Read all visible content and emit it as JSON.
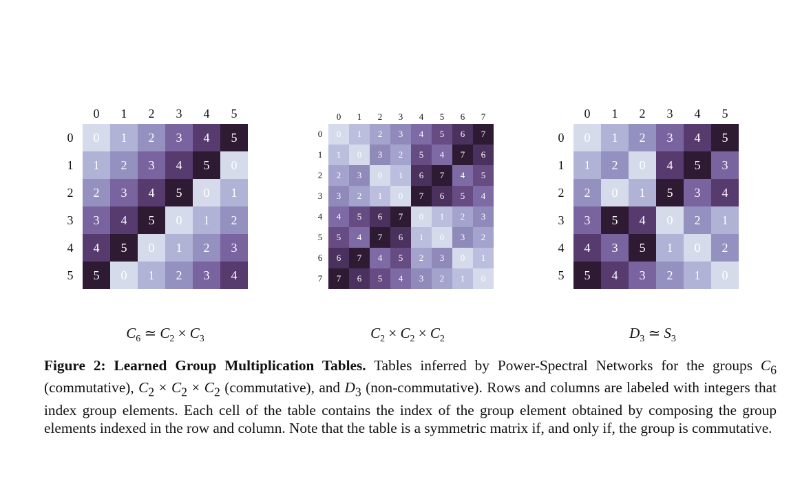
{
  "chart_data": [
    {
      "type": "heatmap",
      "row_labels": [
        "0",
        "1",
        "2",
        "3",
        "4",
        "5"
      ],
      "col_labels": [
        "0",
        "1",
        "2",
        "3",
        "4",
        "5"
      ],
      "values": [
        [
          0,
          1,
          2,
          3,
          4,
          5
        ],
        [
          1,
          2,
          3,
          4,
          5,
          0
        ],
        [
          2,
          3,
          4,
          5,
          0,
          1
        ],
        [
          3,
          4,
          5,
          0,
          1,
          2
        ],
        [
          4,
          5,
          0,
          1,
          2,
          3
        ],
        [
          5,
          0,
          1,
          2,
          3,
          4
        ]
      ],
      "subtitle": {
        "a": "C",
        "a_sub": "6",
        "op1": "≃",
        "b": "C",
        "b_sub": "2",
        "op2": "×",
        "c": "C",
        "c_sub": "3"
      }
    },
    {
      "type": "heatmap",
      "row_labels": [
        "0",
        "1",
        "2",
        "3",
        "4",
        "5",
        "6",
        "7"
      ],
      "col_labels": [
        "0",
        "1",
        "2",
        "3",
        "4",
        "5",
        "6",
        "7"
      ],
      "values": [
        [
          0,
          1,
          2,
          3,
          4,
          5,
          6,
          7
        ],
        [
          1,
          0,
          3,
          2,
          5,
          4,
          7,
          6
        ],
        [
          2,
          3,
          0,
          1,
          6,
          7,
          4,
          5
        ],
        [
          3,
          2,
          1,
          0,
          7,
          6,
          5,
          4
        ],
        [
          4,
          5,
          6,
          7,
          0,
          1,
          2,
          3
        ],
        [
          5,
          4,
          7,
          6,
          1,
          0,
          3,
          2
        ],
        [
          6,
          7,
          4,
          5,
          2,
          3,
          0,
          1
        ],
        [
          7,
          6,
          5,
          4,
          3,
          2,
          1,
          0
        ]
      ],
      "subtitle": {
        "a": "C",
        "a_sub": "2",
        "op1": "×",
        "b": "C",
        "b_sub": "2",
        "op2": "×",
        "c": "C",
        "c_sub": "2"
      }
    },
    {
      "type": "heatmap",
      "row_labels": [
        "0",
        "1",
        "2",
        "3",
        "4",
        "5"
      ],
      "col_labels": [
        "0",
        "1",
        "2",
        "3",
        "4",
        "5"
      ],
      "values": [
        [
          0,
          1,
          2,
          3,
          4,
          5
        ],
        [
          1,
          2,
          0,
          4,
          5,
          3
        ],
        [
          2,
          0,
          1,
          5,
          3,
          4
        ],
        [
          3,
          5,
          4,
          0,
          2,
          1
        ],
        [
          4,
          3,
          5,
          1,
          0,
          2
        ],
        [
          5,
          4,
          3,
          2,
          1,
          0
        ]
      ],
      "subtitle": {
        "a": "D",
        "a_sub": "3",
        "op1": "≃",
        "b": "S",
        "b_sub": "3"
      }
    }
  ],
  "colormap": [
    "#d6dbeb",
    "#b0b2d6",
    "#9490c0",
    "#7a64a0",
    "#573a6e",
    "#2e1a33"
  ],
  "caption": {
    "title": "Figure 2: Learned Group Multiplication Tables.",
    "t1": " Tables inferred by Power-Spectral Networks for the groups ",
    "g1": "C",
    "g1_sub": "6",
    "t2": " (commutative), ",
    "g2": "C",
    "g2_sub": "2",
    "times": "×",
    "t3": " (commutative), and ",
    "g3": "D",
    "g3_sub": "3",
    "t4": " (non-commutative). Rows and columns are labeled with integers that index group elements. Each cell of the table contains the index of the group element obtained by composing the group elements indexed in the row and column. Note that the table is a symmetric matrix if, and only if, the group is commutative."
  }
}
